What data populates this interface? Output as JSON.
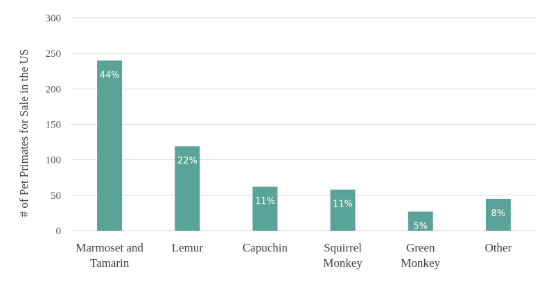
{
  "chart_data": {
    "type": "bar",
    "categories": [
      [
        "Marmoset and",
        "Tamarin"
      ],
      [
        "Lemur"
      ],
      [
        "Capuchin"
      ],
      [
        "Squirrel",
        "Monkey"
      ],
      [
        "Green",
        "Monkey"
      ],
      [
        "Other"
      ]
    ],
    "values": [
      240,
      119,
      62,
      58,
      27,
      45
    ],
    "data_labels": [
      "44%",
      "22%",
      "11%",
      "11%",
      "5%",
      "8%"
    ],
    "ylabel": "# of Pet Primates for Sale in the US",
    "ylim": [
      0,
      300
    ],
    "yticks": [
      0,
      50,
      100,
      150,
      200,
      250,
      300
    ],
    "grid": true,
    "bar_color": "#5aa399"
  }
}
